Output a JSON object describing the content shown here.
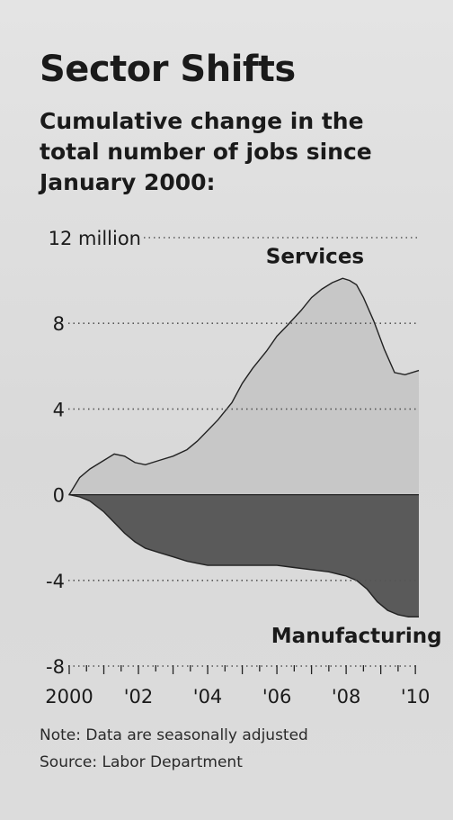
{
  "title": "Sector Shifts",
  "subtitle": "Cumulative change in the total number of jobs since January 2000:",
  "note": "Note: Data are seasonally adjusted",
  "source": "Source: Labor Department",
  "colors": {
    "services_fill": "#c7c7c7",
    "manufacturing_fill": "#5a5a5a",
    "outline": "#222222",
    "gridline": "#555555"
  },
  "chart_data": {
    "type": "area",
    "title": "Sector Shifts",
    "ylabel": "",
    "xlabel": "",
    "ylim": [
      -8,
      12
    ],
    "xlim": [
      2000,
      2010.1
    ],
    "y_ticks": [
      {
        "value": 12,
        "label": "12 million"
      },
      {
        "value": 8,
        "label": "8"
      },
      {
        "value": 4,
        "label": "4"
      },
      {
        "value": 0,
        "label": "0"
      },
      {
        "value": -4,
        "label": "-4"
      },
      {
        "value": -8,
        "label": "-8"
      }
    ],
    "x_ticks": [
      {
        "value": 2000,
        "label": "2000"
      },
      {
        "value": 2002,
        "label": "'02"
      },
      {
        "value": 2004,
        "label": "'04"
      },
      {
        "value": 2006,
        "label": "'06"
      },
      {
        "value": 2008,
        "label": "'08"
      },
      {
        "value": 2010,
        "label": "'10"
      }
    ],
    "grid": "dotted horizontal",
    "series": [
      {
        "name": "Services",
        "x": [
          2000,
          2000.3,
          2000.6,
          2001,
          2001.3,
          2001.6,
          2001.9,
          2002.2,
          2002.6,
          2003,
          2003.4,
          2003.7,
          2004,
          2004.3,
          2004.7,
          2005,
          2005.3,
          2005.7,
          2006,
          2006.3,
          2006.7,
          2007,
          2007.3,
          2007.6,
          2007.9,
          2008.1,
          2008.3,
          2008.5,
          2008.8,
          2009.1,
          2009.4,
          2009.7,
          2010.1
        ],
        "values": [
          0,
          0.8,
          1.2,
          1.6,
          1.9,
          1.8,
          1.5,
          1.4,
          1.6,
          1.8,
          2.1,
          2.5,
          3.0,
          3.5,
          4.3,
          5.2,
          5.9,
          6.7,
          7.4,
          7.9,
          8.6,
          9.2,
          9.6,
          9.9,
          10.1,
          10.0,
          9.8,
          9.2,
          8.1,
          6.8,
          5.7,
          5.6,
          5.8
        ]
      },
      {
        "name": "Manufacturing",
        "x": [
          2000,
          2000.3,
          2000.6,
          2001,
          2001.3,
          2001.6,
          2001.9,
          2002.2,
          2002.6,
          2003,
          2003.4,
          2003.7,
          2004,
          2004.5,
          2005,
          2005.5,
          2006,
          2006.5,
          2007,
          2007.5,
          2008,
          2008.3,
          2008.6,
          2008.9,
          2009.2,
          2009.5,
          2009.8,
          2010.1
        ],
        "values": [
          0,
          -0.1,
          -0.3,
          -0.8,
          -1.3,
          -1.8,
          -2.2,
          -2.5,
          -2.7,
          -2.9,
          -3.1,
          -3.2,
          -3.3,
          -3.3,
          -3.3,
          -3.3,
          -3.3,
          -3.4,
          -3.5,
          -3.6,
          -3.8,
          -4.0,
          -4.4,
          -5.0,
          -5.4,
          -5.6,
          -5.7,
          -5.7
        ]
      }
    ],
    "annotations": [
      {
        "text": "Services",
        "x": 2007.1,
        "y": 10.8
      },
      {
        "text": "Manufacturing",
        "x": 2008.3,
        "y": -6.9
      }
    ]
  }
}
